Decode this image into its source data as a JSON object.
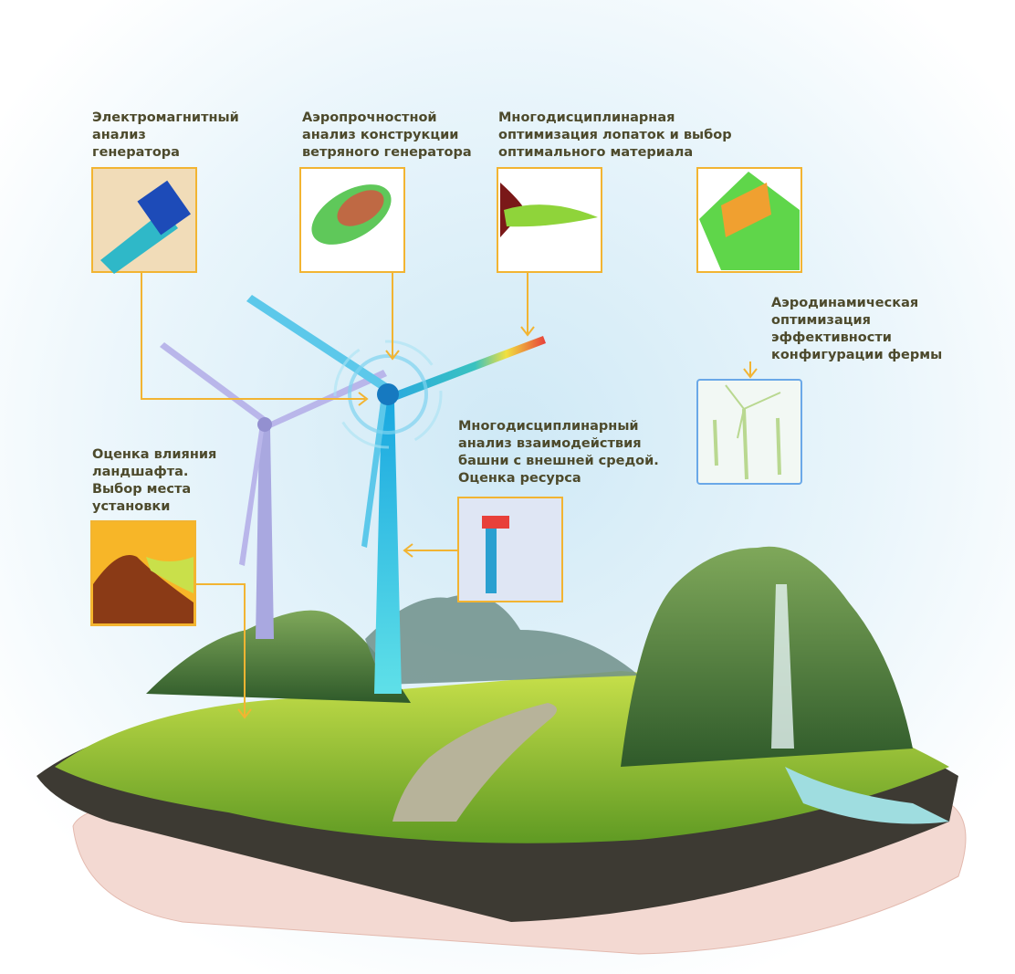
{
  "callouts": [
    {
      "lines": [
        "Электромагнитный",
        "анализ",
        "генератора"
      ]
    },
    {
      "lines": [
        "Аэропрочностной",
        "анализ конструкции",
        "ветряного генератора"
      ]
    },
    {
      "lines": [
        "Многодисциплинарная",
        "оптимизация лопаток и выбор",
        "оптимального материала"
      ]
    },
    {
      "lines": [
        "Аэродинамическая",
        "оптимизация",
        "эффективности",
        "конфигурации фермы"
      ]
    },
    {
      "lines": [
        "Многодисциплинарный",
        "анализ взаимодействия",
        "башни с внешней средой.",
        "Оценка ресурса"
      ]
    },
    {
      "lines": [
        "Оценка влияния",
        "ландшафта.",
        "Выбор места",
        "установки"
      ]
    }
  ]
}
